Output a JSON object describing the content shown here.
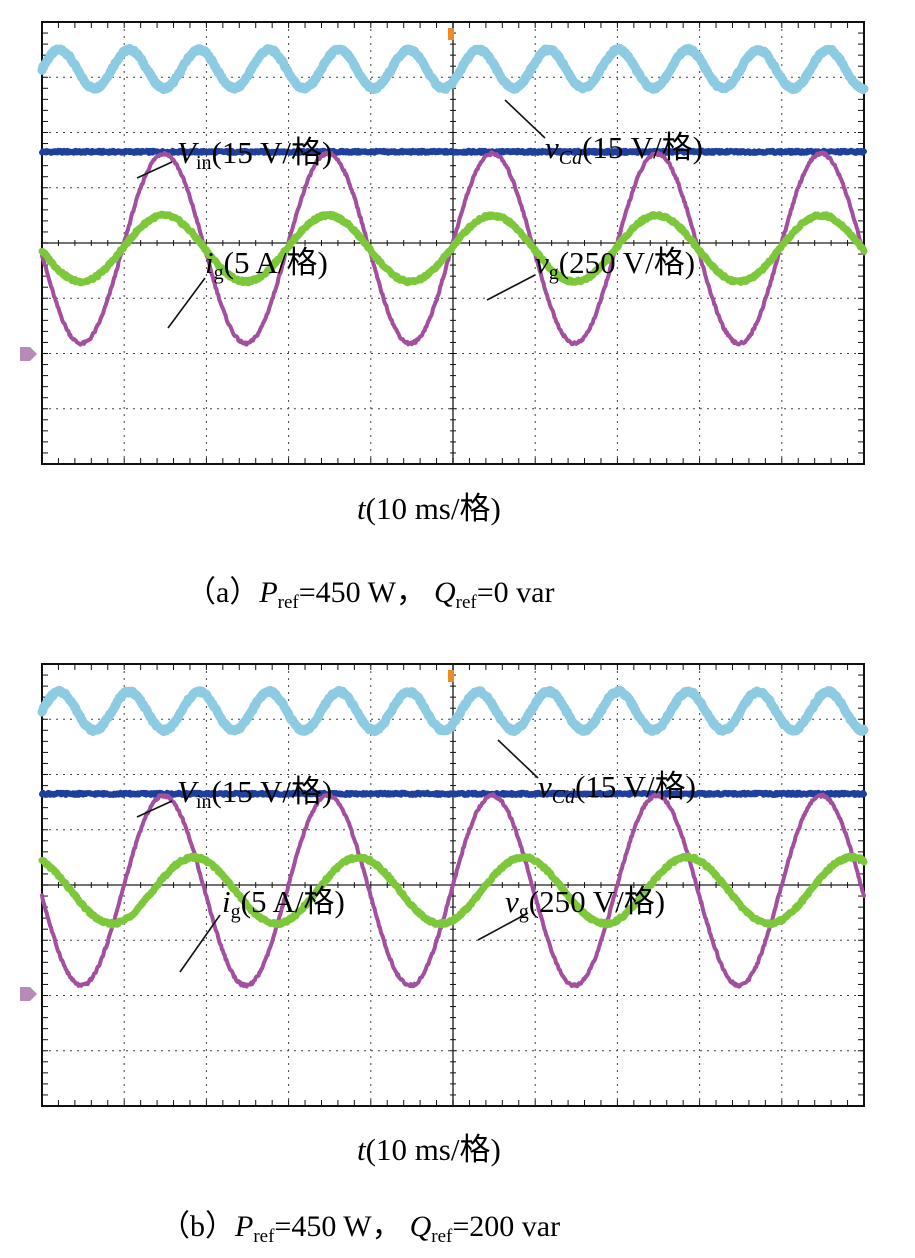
{
  "figure": {
    "colors": {
      "vcd": "#8ccbe2",
      "vin": "#1f3f9c",
      "ig": "#7cc83a",
      "vg": "#a24fa0",
      "grid": "#444444",
      "trigger_marker": "#f08a24",
      "level_marker": "#b78ab8"
    },
    "x_axis_label": {
      "var": "t",
      "rest": "(10 ms/格)"
    },
    "panels": [
      {
        "id": "a",
        "caption": {
          "prefix": "（a）",
          "p_symbol": "P",
          "p_sub": "ref",
          "p_value": "=450 W，",
          "q_symbol": "Q",
          "q_sub": "ref",
          "q_value": "=0 var"
        },
        "labels": {
          "vin": {
            "sym": "V",
            "sub": "in",
            "scale": "(15 V/格)"
          },
          "vcd": {
            "sym": "v",
            "sub": "Cd",
            "scale": "(15 V/格)"
          },
          "ig": {
            "sym": "i",
            "sub": "g",
            "scale": "(5 A/格)"
          },
          "vg": {
            "sym": "v",
            "sub": "g",
            "scale": "(250 V/格)"
          }
        }
      },
      {
        "id": "b",
        "caption": {
          "prefix": "（b）",
          "p_symbol": "P",
          "p_sub": "ref",
          "p_value": "=450 W，",
          "q_symbol": "Q",
          "q_sub": "ref",
          "q_value": "=200 var"
        },
        "labels": {
          "vin": {
            "sym": "V",
            "sub": "in",
            "scale": "(15 V/格)"
          },
          "vcd": {
            "sym": "v",
            "sub": "Cd",
            "scale": "(15 V/格)"
          },
          "ig": {
            "sym": "i",
            "sub": "g",
            "scale": "(5 A/格)"
          },
          "vg": {
            "sym": "v",
            "sub": "g",
            "scale": "(250 V/格)"
          }
        }
      }
    ]
  },
  "chart_data": [
    {
      "type": "line",
      "panel": "a",
      "xlabel": "t(10 ms/格)",
      "x_unit": "div",
      "x_range": [
        0,
        10
      ],
      "y_unit": "div",
      "y_range": [
        -4,
        4
      ],
      "grid": true,
      "series": [
        {
          "name": "vCd (15 V/格)",
          "kind": "sine",
          "center_div": 3.15,
          "amplitude_div": 0.35,
          "period_div": 0.85,
          "phase_div": 0.0
        },
        {
          "name": "Vin (15 V/格)",
          "kind": "dc",
          "level_div": 1.65
        },
        {
          "name": "vg (250 V/格)",
          "kind": "sine",
          "center_div": -0.1,
          "amplitude_div": 1.72,
          "period_div": 2.0,
          "phase_div": 0.98
        },
        {
          "name": "ig (5 A/格)",
          "kind": "sine",
          "center_div": -0.1,
          "amplitude_div": 0.6,
          "period_div": 2.0,
          "phase_div": 0.98
        }
      ]
    },
    {
      "type": "line",
      "panel": "b",
      "xlabel": "t(10 ms/格)",
      "x_unit": "div",
      "x_range": [
        0,
        10
      ],
      "y_unit": "div",
      "y_range": [
        -4,
        4
      ],
      "grid": true,
      "series": [
        {
          "name": "vCd (15 V/格)",
          "kind": "sine",
          "center_div": 3.15,
          "amplitude_div": 0.35,
          "period_div": 0.85,
          "phase_div": 0.0
        },
        {
          "name": "Vin (15 V/格)",
          "kind": "dc",
          "level_div": 1.65
        },
        {
          "name": "vg (250 V/格)",
          "kind": "sine",
          "center_div": -0.1,
          "amplitude_div": 1.72,
          "period_div": 2.0,
          "phase_div": 0.98
        },
        {
          "name": "ig (5 A/格)",
          "kind": "sine",
          "center_div": -0.1,
          "amplitude_div": 0.6,
          "period_div": 2.0,
          "phase_div": 1.35
        }
      ]
    }
  ]
}
